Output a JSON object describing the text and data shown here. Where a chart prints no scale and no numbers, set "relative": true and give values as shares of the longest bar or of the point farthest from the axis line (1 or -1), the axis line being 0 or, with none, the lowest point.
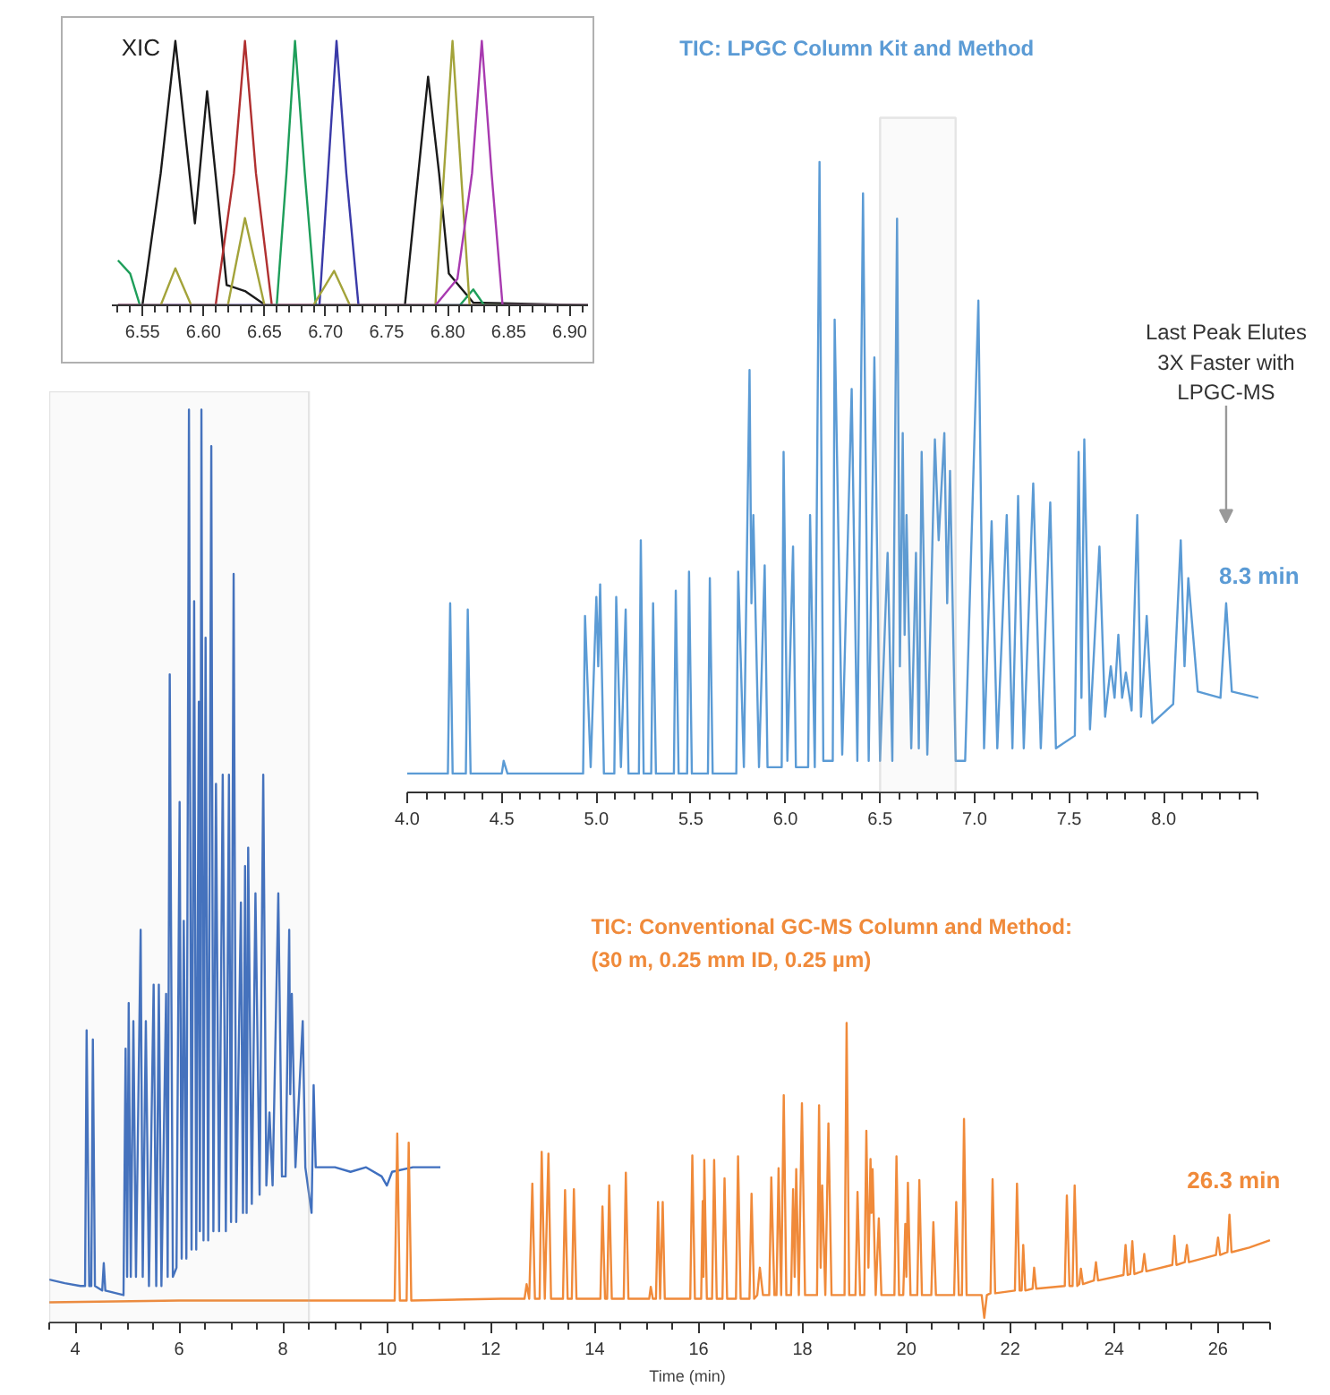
{
  "chart_data": [
    {
      "type": "line",
      "relative": true,
      "annotations": [
        "XIC"
      ],
      "xlim": [
        6.525,
        6.915
      ],
      "xticks": [
        {
          "value": 6.55,
          "label": "6.55"
        },
        {
          "value": 6.6,
          "label": "6.60"
        },
        {
          "value": 6.65,
          "label": "6.65"
        },
        {
          "value": 6.7,
          "label": "6.70"
        },
        {
          "value": 6.75,
          "label": "6.75"
        },
        {
          "value": 6.8,
          "label": "6.80"
        },
        {
          "value": 6.85,
          "label": "6.85"
        },
        {
          "value": 6.9,
          "label": "6.90"
        },
        {
          "value": 6.53,
          "label": null
        },
        {
          "value": 6.54,
          "label": null
        },
        {
          "value": 6.56,
          "label": null
        },
        {
          "value": 6.57,
          "label": null
        },
        {
          "value": 6.58,
          "label": null
        },
        {
          "value": 6.59,
          "label": null
        },
        {
          "value": 6.61,
          "label": null
        },
        {
          "value": 6.62,
          "label": null
        },
        {
          "value": 6.63,
          "label": null
        },
        {
          "value": 6.64,
          "label": null
        },
        {
          "value": 6.66,
          "label": null
        },
        {
          "value": 6.67,
          "label": null
        },
        {
          "value": 6.68,
          "label": null
        },
        {
          "value": 6.69,
          "label": null
        },
        {
          "value": 6.71,
          "label": null
        },
        {
          "value": 6.72,
          "label": null
        },
        {
          "value": 6.73,
          "label": null
        },
        {
          "value": 6.74,
          "label": null
        },
        {
          "value": 6.76,
          "label": null
        },
        {
          "value": 6.77,
          "label": null
        },
        {
          "value": 6.78,
          "label": null
        },
        {
          "value": 6.79,
          "label": null
        },
        {
          "value": 6.81,
          "label": null
        },
        {
          "value": 6.82,
          "label": null
        },
        {
          "value": 6.83,
          "label": null
        },
        {
          "value": 6.84,
          "label": null
        },
        {
          "value": 6.86,
          "label": null
        },
        {
          "value": 6.87,
          "label": null
        },
        {
          "value": 6.88,
          "label": null
        },
        {
          "value": 6.89,
          "label": null
        },
        {
          "value": 6.91,
          "label": null
        }
      ],
      "series": [
        {
          "color": "#1a1a1a",
          "x": [
            6.53,
            6.55,
            6.565,
            6.577,
            6.593,
            6.603,
            6.612,
            6.619,
            6.634,
            6.651,
            6.765,
            6.776,
            6.784,
            6.793,
            6.801,
            6.821,
            6.915
          ],
          "values": [
            0,
            0,
            0.5,
            1.0,
            0.31,
            0.81,
            0.4,
            0.077,
            0.054,
            0,
            0,
            0.5,
            0.865,
            0.5,
            0.12,
            0.01,
            0
          ]
        },
        {
          "color": "#b03030",
          "x": [
            6.53,
            6.61,
            6.625,
            6.634,
            6.643,
            6.656,
            6.915
          ],
          "values": [
            0,
            0,
            0.5,
            1.0,
            0.5,
            0,
            0
          ]
        },
        {
          "color": "#1e9e5a",
          "x": [
            6.53,
            6.54,
            6.548,
            6.66,
            6.668,
            6.675,
            6.683,
            6.692,
            6.81,
            6.821,
            6.83,
            6.915
          ],
          "values": [
            0.17,
            0.12,
            0,
            0,
            0.5,
            1.0,
            0.5,
            0,
            0,
            0.06,
            0,
            0
          ]
        },
        {
          "color": "#3a3aa8",
          "x": [
            6.53,
            6.695,
            6.702,
            6.709,
            6.717,
            6.727,
            6.915
          ],
          "values": [
            0,
            0,
            0.5,
            1.0,
            0.5,
            0,
            0
          ]
        },
        {
          "color": "#a3a33a",
          "x": [
            6.53,
            6.565,
            6.577,
            6.59,
            6.62,
            6.634,
            6.65,
            6.69,
            6.707,
            6.72,
            6.79,
            6.797,
            6.804,
            6.811,
            6.818,
            6.915
          ],
          "values": [
            0,
            0,
            0.14,
            0,
            0,
            0.33,
            0,
            0,
            0.13,
            0,
            0,
            0.5,
            1.0,
            0.5,
            0,
            0
          ]
        },
        {
          "color": "#a83ab0",
          "x": [
            6.53,
            6.79,
            6.808,
            6.82,
            6.828,
            6.836,
            6.845,
            6.915
          ],
          "values": [
            0,
            0,
            0.1,
            0.5,
            1.0,
            0.5,
            0,
            0
          ]
        }
      ]
    },
    {
      "type": "line",
      "relative": true,
      "title": "TIC: LPGC Column Kit and Method",
      "annotations": [
        "Last Peak Elutes\n3X Faster with\nLPGC-MS",
        {
          "text": "8.3 min",
          "x": 8.33,
          "y": 0.3
        }
      ],
      "xlim": [
        4.0,
        8.5
      ],
      "xticks": [
        {
          "value": 4.0,
          "label": "4.0"
        },
        {
          "value": 4.5,
          "label": "4.5"
        },
        {
          "value": 5.0,
          "label": "5.0"
        },
        {
          "value": 5.5,
          "label": "5.5"
        },
        {
          "value": 6.0,
          "label": "6.0"
        },
        {
          "value": 6.5,
          "label": "6.5"
        },
        {
          "value": 7.0,
          "label": "7.0"
        },
        {
          "value": 7.5,
          "label": "7.5"
        },
        {
          "value": 8.0,
          "label": "8.0"
        },
        {
          "value": 4.1,
          "label": null
        },
        {
          "value": 4.2,
          "label": null
        },
        {
          "value": 4.3,
          "label": null
        },
        {
          "value": 4.4,
          "label": null
        },
        {
          "value": 4.6,
          "label": null
        },
        {
          "value": 4.7,
          "label": null
        },
        {
          "value": 4.8,
          "label": null
        },
        {
          "value": 4.9,
          "label": null
        },
        {
          "value": 5.1,
          "label": null
        },
        {
          "value": 5.2,
          "label": null
        },
        {
          "value": 5.3,
          "label": null
        },
        {
          "value": 5.4,
          "label": null
        },
        {
          "value": 5.6,
          "label": null
        },
        {
          "value": 5.7,
          "label": null
        },
        {
          "value": 5.8,
          "label": null
        },
        {
          "value": 5.9,
          "label": null
        },
        {
          "value": 6.1,
          "label": null
        },
        {
          "value": 6.2,
          "label": null
        },
        {
          "value": 6.3,
          "label": null
        },
        {
          "value": 6.4,
          "label": null
        },
        {
          "value": 6.6,
          "label": null
        },
        {
          "value": 6.7,
          "label": null
        },
        {
          "value": 6.8,
          "label": null
        },
        {
          "value": 6.9,
          "label": null
        },
        {
          "value": 7.1,
          "label": null
        },
        {
          "value": 7.2,
          "label": null
        },
        {
          "value": 7.3,
          "label": null
        },
        {
          "value": 7.4,
          "label": null
        },
        {
          "value": 7.6,
          "label": null
        },
        {
          "value": 7.7,
          "label": null
        },
        {
          "value": 7.8,
          "label": null
        },
        {
          "value": 7.9,
          "label": null
        },
        {
          "value": 8.1,
          "label": null
        },
        {
          "value": 8.2,
          "label": null
        },
        {
          "value": 8.3,
          "label": null
        },
        {
          "value": 8.4,
          "label": null
        },
        {
          "value": 8.5,
          "label": null
        }
      ],
      "bands": [
        {
          "axis": "x",
          "from": 6.5,
          "to": 6.9,
          "color": "#b0b0b0"
        }
      ],
      "series": [
        {
          "color": "#5b9bd5",
          "x": [
            4.0,
            4.215,
            4.227,
            4.24,
            4.31,
            4.32,
            4.335,
            4.5,
            4.51,
            4.53,
            4.93,
            4.94,
            4.97,
            5.0,
            5.01,
            5.02,
            5.04,
            5.095,
            5.105,
            5.13,
            5.155,
            5.17,
            5.225,
            5.235,
            5.25,
            5.29,
            5.3,
            5.315,
            5.41,
            5.42,
            5.435,
            5.48,
            5.49,
            5.505,
            5.59,
            5.6,
            5.615,
            5.74,
            5.75,
            5.78,
            5.81,
            5.82,
            5.83,
            5.86,
            5.89,
            5.905,
            5.98,
            5.99,
            6.01,
            6.04,
            6.055,
            6.12,
            6.13,
            6.155,
            6.18,
            6.2,
            6.25,
            6.26,
            6.3,
            6.35,
            6.38,
            6.41,
            6.44,
            6.47,
            6.5,
            6.54,
            6.565,
            6.59,
            6.605,
            6.62,
            6.63,
            6.64,
            6.665,
            6.69,
            6.705,
            6.72,
            6.75,
            6.79,
            6.81,
            6.84,
            6.855,
            6.87,
            6.9,
            6.95,
            7.02,
            7.05,
            7.09,
            7.12,
            7.17,
            7.2,
            7.23,
            7.26,
            7.31,
            7.35,
            7.4,
            7.43,
            7.53,
            7.55,
            7.565,
            7.58,
            7.61,
            7.66,
            7.69,
            7.72,
            7.74,
            7.76,
            7.78,
            7.8,
            7.83,
            7.86,
            7.88,
            7.91,
            7.94,
            8.05,
            8.09,
            8.11,
            8.13,
            8.18,
            8.3,
            8.33,
            8.36,
            8.5
          ],
          "values": [
            0.03,
            0.03,
            0.3,
            0.03,
            0.03,
            0.29,
            0.03,
            0.03,
            0.05,
            0.03,
            0.03,
            0.28,
            0.04,
            0.31,
            0.2,
            0.33,
            0.03,
            0.03,
            0.31,
            0.04,
            0.29,
            0.03,
            0.03,
            0.4,
            0.03,
            0.03,
            0.3,
            0.03,
            0.03,
            0.32,
            0.03,
            0.03,
            0.35,
            0.03,
            0.03,
            0.34,
            0.03,
            0.03,
            0.35,
            0.04,
            0.67,
            0.3,
            0.44,
            0.04,
            0.36,
            0.04,
            0.04,
            0.54,
            0.05,
            0.39,
            0.04,
            0.04,
            0.44,
            0.04,
            1.0,
            0.05,
            0.05,
            0.75,
            0.06,
            0.64,
            0.05,
            0.95,
            0.05,
            0.69,
            0.05,
            0.38,
            0.05,
            0.91,
            0.2,
            0.57,
            0.25,
            0.44,
            0.07,
            0.38,
            0.07,
            0.54,
            0.06,
            0.56,
            0.4,
            0.57,
            0.3,
            0.51,
            0.05,
            0.05,
            0.78,
            0.07,
            0.43,
            0.07,
            0.44,
            0.07,
            0.47,
            0.07,
            0.49,
            0.07,
            0.46,
            0.07,
            0.09,
            0.54,
            0.15,
            0.56,
            0.1,
            0.39,
            0.12,
            0.2,
            0.15,
            0.25,
            0.15,
            0.19,
            0.13,
            0.44,
            0.12,
            0.28,
            0.11,
            0.14,
            0.4,
            0.2,
            0.34,
            0.16,
            0.15,
            0.3,
            0.16,
            0.15
          ]
        }
      ]
    },
    {
      "type": "line",
      "relative": true,
      "title": "TIC: Conventional GC-MS Column and Method:",
      "subtitle": "(30 m, 0.25 mm ID, 0.25 µm)",
      "xlabel": "Time (min)",
      "annotations": [
        {
          "text": "26.3 min",
          "x": 26.3,
          "y": 0.118
        }
      ],
      "xlim": [
        3.5,
        27.0
      ],
      "xticks": [
        4,
        6,
        8,
        10,
        12,
        14,
        16,
        18,
        20,
        22,
        24,
        26,
        {
          "value": 3.5,
          "label": null
        },
        {
          "value": 4.5,
          "label": null
        },
        {
          "value": 5,
          "label": null
        },
        {
          "value": 5.5,
          "label": null
        },
        {
          "value": 6.5,
          "label": null
        },
        {
          "value": 7,
          "label": null
        },
        {
          "value": 7.5,
          "label": null
        },
        {
          "value": 8.5,
          "label": null
        },
        {
          "value": 9,
          "label": null
        },
        {
          "value": 9.5,
          "label": null
        },
        {
          "value": 10.5,
          "label": null
        },
        {
          "value": 11,
          "label": null
        },
        {
          "value": 11.5,
          "label": null
        },
        {
          "value": 12.5,
          "label": null
        },
        {
          "value": 13,
          "label": null
        },
        {
          "value": 13.5,
          "label": null
        },
        {
          "value": 14.5,
          "label": null
        },
        {
          "value": 15,
          "label": null
        },
        {
          "value": 15.5,
          "label": null
        },
        {
          "value": 16.5,
          "label": null
        },
        {
          "value": 17,
          "label": null
        },
        {
          "value": 17.5,
          "label": null
        },
        {
          "value": 18.5,
          "label": null
        },
        {
          "value": 19,
          "label": null
        },
        {
          "value": 19.5,
          "label": null
        },
        {
          "value": 20.5,
          "label": null
        },
        {
          "value": 21,
          "label": null
        },
        {
          "value": 21.5,
          "label": null
        },
        {
          "value": 22.5,
          "label": null
        },
        {
          "value": 23,
          "label": null
        },
        {
          "value": 23.5,
          "label": null
        },
        {
          "value": 24.5,
          "label": null
        },
        {
          "value": 25,
          "label": null
        },
        {
          "value": 25.5,
          "label": null
        },
        {
          "value": 26.5,
          "label": null
        },
        {
          "value": 27,
          "label": null
        }
      ],
      "bands": [
        {
          "axis": "x",
          "from": 3.5,
          "to": 8.5,
          "color": "#b0b0b0"
        }
      ],
      "series": [
        {
          "color": "#3f6fbf",
          "x": [
            3.5,
            3.8,
            4.1,
            4.19,
            4.22,
            4.27,
            4.31,
            4.34,
            4.38,
            4.52,
            4.55,
            4.58,
            4.93,
            4.97,
            5.0,
            5.03,
            5.07,
            5.12,
            5.17,
            5.26,
            5.3,
            5.36,
            5.42,
            5.51,
            5.56,
            5.61,
            5.66,
            5.75,
            5.78,
            5.82,
            5.88,
            5.95,
            6.01,
            6.05,
            6.09,
            6.14,
            6.19,
            6.24,
            6.29,
            6.33,
            6.38,
            6.4,
            6.43,
            6.47,
            6.51,
            6.56,
            6.62,
            6.66,
            6.71,
            6.77,
            6.84,
            6.9,
            6.96,
            7.0,
            7.05,
            7.1,
            7.19,
            7.23,
            7.27,
            7.3,
            7.33,
            7.4,
            7.47,
            7.55,
            7.62,
            7.68,
            7.74,
            7.8,
            7.91,
            7.98,
            8.05,
            8.12,
            8.14,
            8.17,
            8.24,
            8.38,
            8.43,
            8.55,
            8.59,
            8.63,
            9.0,
            9.3,
            9.6,
            9.9,
            10.0,
            10.1,
            10.5,
            11.03
          ],
          "values": [
            0.047,
            0.043,
            0.04,
            0.04,
            0.32,
            0.04,
            0.04,
            0.31,
            0.04,
            0.035,
            0.065,
            0.035,
            0.03,
            0.3,
            0.05,
            0.35,
            0.05,
            0.33,
            0.05,
            0.43,
            0.05,
            0.33,
            0.04,
            0.37,
            0.04,
            0.37,
            0.04,
            0.36,
            0.05,
            0.71,
            0.05,
            0.06,
            0.57,
            0.07,
            0.44,
            0.07,
            1.0,
            0.08,
            0.79,
            0.08,
            0.68,
            0.1,
            1.0,
            0.09,
            0.75,
            0.09,
            0.96,
            0.1,
            0.59,
            0.1,
            0.6,
            0.1,
            0.6,
            0.11,
            0.82,
            0.11,
            0.46,
            0.12,
            0.5,
            0.12,
            0.52,
            0.13,
            0.47,
            0.14,
            0.6,
            0.15,
            0.23,
            0.15,
            0.47,
            0.16,
            0.16,
            0.43,
            0.25,
            0.36,
            0.17,
            0.33,
            0.17,
            0.12,
            0.26,
            0.17,
            0.17,
            0.165,
            0.17,
            0.16,
            0.15,
            0.165,
            0.17,
            0.17
          ]
        },
        {
          "color": "#f08a3a",
          "x": [
            3.5,
            6,
            8,
            10.15,
            10.2,
            10.25,
            10.38,
            10.42,
            10.47,
            12.2,
            12.65,
            12.69,
            12.74,
            12.8,
            12.85,
            12.94,
            12.98,
            13.04,
            13.11,
            13.16,
            13.39,
            13.43,
            13.48,
            13.56,
            13.6,
            13.65,
            14.11,
            14.15,
            14.2,
            14.24,
            14.28,
            14.33,
            14.56,
            14.6,
            14.65,
            15.05,
            15.08,
            15.12,
            15.18,
            15.22,
            15.26,
            15.31,
            15.35,
            15.84,
            15.88,
            15.93,
            16.05,
            16.08,
            16.095,
            16.11,
            16.16,
            16.26,
            16.3,
            16.35,
            16.46,
            16.5,
            16.55,
            16.72,
            16.76,
            16.81,
            16.98,
            17.02,
            17.07,
            17.13,
            17.18,
            17.24,
            17.36,
            17.4,
            17.46,
            17.5,
            17.54,
            17.59,
            17.64,
            17.69,
            17.78,
            17.82,
            17.85,
            17.88,
            17.93,
            17.99,
            18.05,
            18.28,
            18.32,
            18.35,
            18.38,
            18.44,
            18.5,
            18.56,
            18.81,
            18.85,
            18.9,
            19.02,
            19.06,
            19.11,
            19.19,
            19.23,
            19.27,
            19.31,
            19.33,
            19.35,
            19.41,
            19.47,
            19.52,
            19.77,
            19.81,
            19.86,
            19.94,
            19.98,
            20.0,
            20.03,
            20.08,
            20.21,
            20.25,
            20.3,
            20.48,
            20.52,
            20.57,
            20.92,
            20.96,
            21.01,
            21.07,
            21.11,
            21.16,
            21.45,
            21.5,
            21.55,
            21.62,
            21.66,
            21.71,
            22.09,
            22.13,
            22.18,
            22.22,
            22.25,
            22.29,
            22.43,
            22.46,
            22.5,
            23.05,
            23.09,
            23.14,
            23.2,
            23.24,
            23.29,
            23.33,
            23.36,
            23.4,
            23.61,
            23.65,
            23.69,
            24.18,
            24.22,
            24.26,
            24.31,
            24.35,
            24.39,
            24.54,
            24.58,
            24.62,
            25.12,
            25.16,
            25.2,
            25.36,
            25.4,
            25.44,
            25.96,
            26.0,
            26.04,
            26.18,
            26.22,
            26.26,
            26.6,
            27.0
          ],
          "values": [
            0.022,
            0.024,
            0.024,
            0.024,
            0.207,
            0.024,
            0.024,
            0.197,
            0.024,
            0.026,
            0.026,
            0.042,
            0.026,
            0.152,
            0.026,
            0.026,
            0.187,
            0.026,
            0.185,
            0.026,
            0.026,
            0.145,
            0.026,
            0.026,
            0.146,
            0.026,
            0.026,
            0.127,
            0.026,
            0.026,
            0.15,
            0.026,
            0.026,
            0.164,
            0.026,
            0.026,
            0.039,
            0.026,
            0.026,
            0.132,
            0.026,
            0.132,
            0.026,
            0.026,
            0.183,
            0.026,
            0.026,
            0.133,
            0.05,
            0.178,
            0.026,
            0.026,
            0.178,
            0.026,
            0.026,
            0.158,
            0.026,
            0.026,
            0.182,
            0.026,
            0.026,
            0.141,
            0.026,
            0.03,
            0.06,
            0.03,
            0.03,
            0.159,
            0.03,
            0.03,
            0.169,
            0.03,
            0.249,
            0.03,
            0.03,
            0.146,
            0.05,
            0.168,
            0.03,
            0.24,
            0.03,
            0.03,
            0.238,
            0.06,
            0.15,
            0.03,
            0.218,
            0.03,
            0.03,
            0.328,
            0.03,
            0.03,
            0.143,
            0.03,
            0.03,
            0.21,
            0.06,
            0.179,
            0.12,
            0.168,
            0.03,
            0.114,
            0.03,
            0.03,
            0.182,
            0.03,
            0.03,
            0.108,
            0.05,
            0.153,
            0.03,
            0.03,
            0.156,
            0.03,
            0.03,
            0.11,
            0.03,
            0.03,
            0.132,
            0.03,
            0.03,
            0.223,
            0.03,
            0.03,
            0.005,
            0.03,
            0.032,
            0.157,
            0.032,
            0.035,
            0.152,
            0.035,
            0.035,
            0.085,
            0.035,
            0.037,
            0.06,
            0.037,
            0.04,
            0.139,
            0.04,
            0.04,
            0.15,
            0.04,
            0.042,
            0.059,
            0.042,
            0.046,
            0.066,
            0.046,
            0.052,
            0.085,
            0.052,
            0.053,
            0.089,
            0.053,
            0.056,
            0.075,
            0.056,
            0.063,
            0.095,
            0.063,
            0.066,
            0.085,
            0.066,
            0.074,
            0.093,
            0.074,
            0.077,
            0.118,
            0.077,
            0.082,
            0.09
          ]
        }
      ]
    }
  ]
}
